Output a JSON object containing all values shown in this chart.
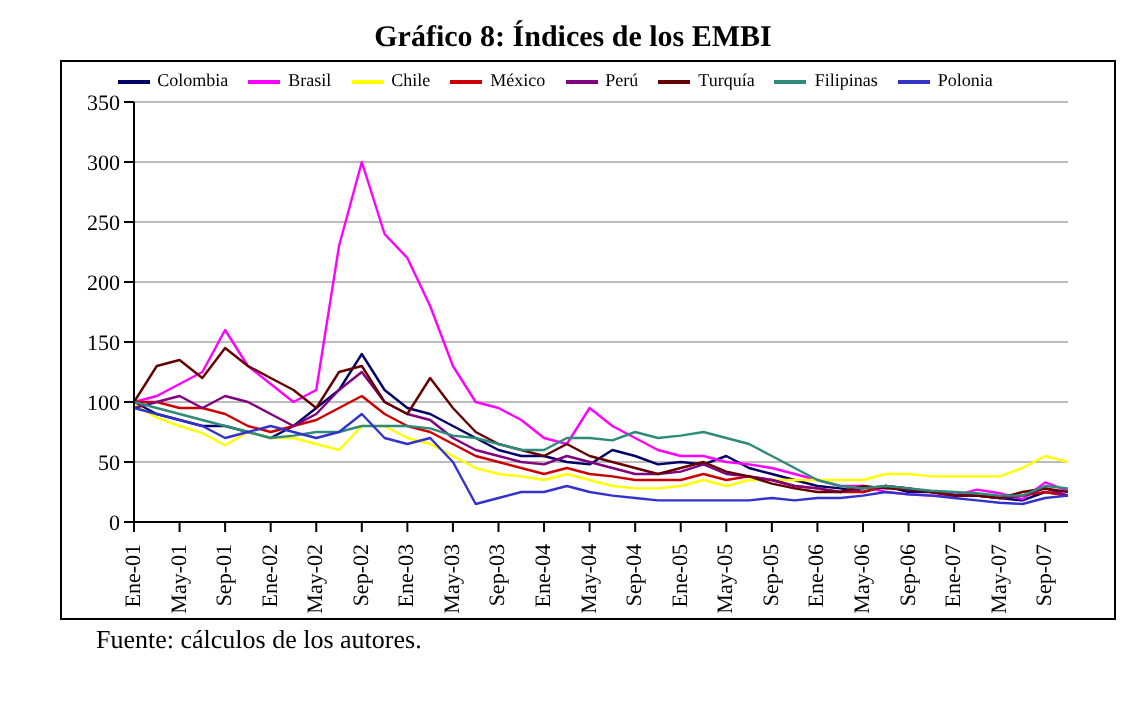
{
  "chart_data": {
    "type": "line",
    "title": "Gráfico 8: Índices de los EMBI",
    "annotations": [
      "Fuente: cálculos de los autores."
    ],
    "x": [
      "2001-01",
      "2001-03",
      "2001-05",
      "2001-07",
      "2001-09",
      "2001-11",
      "2002-01",
      "2002-03",
      "2002-05",
      "2002-07",
      "2002-09",
      "2002-11",
      "2003-01",
      "2003-03",
      "2003-05",
      "2003-07",
      "2003-09",
      "2003-11",
      "2004-01",
      "2004-03",
      "2004-05",
      "2004-07",
      "2004-09",
      "2004-11",
      "2005-01",
      "2005-03",
      "2005-05",
      "2005-07",
      "2005-09",
      "2005-11",
      "2006-01",
      "2006-03",
      "2006-05",
      "2006-07",
      "2006-09",
      "2006-11",
      "2007-01",
      "2007-03",
      "2007-05",
      "2007-07",
      "2007-09",
      "2007-11"
    ],
    "series": [
      {
        "name": "Colombia",
        "color": "#000066",
        "values": [
          100,
          90,
          85,
          80,
          80,
          75,
          70,
          80,
          95,
          110,
          140,
          110,
          95,
          90,
          80,
          70,
          60,
          55,
          55,
          50,
          48,
          60,
          55,
          48,
          50,
          48,
          55,
          45,
          40,
          35,
          30,
          28,
          25,
          30,
          25,
          25,
          22,
          22,
          20,
          18,
          25,
          22
        ]
      },
      {
        "name": "Brasil",
        "color": "#ff00ff",
        "values": [
          100,
          105,
          115,
          125,
          160,
          130,
          115,
          100,
          110,
          230,
          300,
          240,
          220,
          180,
          130,
          100,
          95,
          85,
          70,
          65,
          95,
          80,
          70,
          60,
          55,
          55,
          50,
          48,
          45,
          40,
          35,
          30,
          30,
          25,
          23,
          22,
          22,
          27,
          24,
          19,
          33,
          26
        ]
      },
      {
        "name": "Chile",
        "color": "#ffff00",
        "values": [
          98,
          87,
          80,
          74,
          64,
          75,
          70,
          70,
          65,
          60,
          80,
          80,
          70,
          65,
          55,
          45,
          40,
          38,
          35,
          40,
          35,
          30,
          28,
          28,
          30,
          35,
          30,
          35,
          35,
          35,
          35,
          35,
          35,
          40,
          40,
          38,
          38,
          38,
          38,
          45,
          55,
          50
        ]
      },
      {
        "name": "México",
        "color": "#cc0000",
        "values": [
          100,
          100,
          95,
          95,
          90,
          80,
          75,
          80,
          85,
          95,
          105,
          90,
          80,
          75,
          65,
          55,
          50,
          45,
          40,
          45,
          40,
          38,
          35,
          35,
          35,
          40,
          35,
          38,
          35,
          30,
          28,
          25,
          25,
          30,
          28,
          25,
          22,
          22,
          20,
          22,
          25,
          22
        ]
      },
      {
        "name": "Perú",
        "color": "#800080",
        "values": [
          95,
          100,
          105,
          95,
          105,
          100,
          90,
          80,
          90,
          110,
          125,
          100,
          90,
          85,
          70,
          60,
          55,
          50,
          48,
          55,
          50,
          45,
          40,
          40,
          42,
          48,
          40,
          38,
          35,
          30,
          28,
          25,
          28,
          30,
          28,
          25,
          23,
          22,
          20,
          22,
          28,
          22
        ]
      },
      {
        "name": "Turquía",
        "color": "#660000",
        "values": [
          100,
          130,
          135,
          120,
          145,
          130,
          120,
          110,
          95,
          125,
          130,
          100,
          90,
          120,
          95,
          75,
          65,
          60,
          55,
          65,
          55,
          50,
          45,
          40,
          45,
          50,
          42,
          38,
          32,
          28,
          25,
          25,
          30,
          28,
          27,
          25,
          22,
          22,
          20,
          25,
          28,
          25
        ]
      },
      {
        "name": "Filipinas",
        "color": "#2e8b7a",
        "values": [
          100,
          95,
          90,
          85,
          80,
          75,
          70,
          72,
          75,
          75,
          80,
          80,
          80,
          78,
          72,
          70,
          65,
          60,
          60,
          70,
          70,
          68,
          75,
          70,
          72,
          75,
          70,
          65,
          55,
          45,
          35,
          30,
          28,
          30,
          28,
          26,
          25,
          24,
          22,
          22,
          30,
          28
        ]
      },
      {
        "name": "Polonia",
        "color": "#3333cc",
        "values": [
          95,
          90,
          85,
          80,
          70,
          75,
          80,
          75,
          70,
          75,
          90,
          70,
          65,
          70,
          50,
          15,
          20,
          25,
          25,
          30,
          25,
          22,
          20,
          18,
          18,
          18,
          18,
          18,
          20,
          18,
          20,
          20,
          22,
          25,
          23,
          22,
          20,
          18,
          16,
          15,
          20,
          22
        ]
      }
    ],
    "xlim": [
      "2001-01",
      "2007-11"
    ],
    "xticks": [
      {
        "value": "2001-01",
        "label": "Ene-01"
      },
      {
        "value": "2001-05",
        "label": "May-01"
      },
      {
        "value": "2001-09",
        "label": "Sep-01"
      },
      {
        "value": "2002-01",
        "label": "Ene-02"
      },
      {
        "value": "2002-05",
        "label": "May-02"
      },
      {
        "value": "2002-09",
        "label": "Sep-02"
      },
      {
        "value": "2003-01",
        "label": "Ene-03"
      },
      {
        "value": "2003-05",
        "label": "May-03"
      },
      {
        "value": "2003-09",
        "label": "Sep-03"
      },
      {
        "value": "2004-01",
        "label": "Ene-04"
      },
      {
        "value": "2004-05",
        "label": "May-04"
      },
      {
        "value": "2004-09",
        "label": "Sep-04"
      },
      {
        "value": "2005-01",
        "label": "Ene-05"
      },
      {
        "value": "2005-05",
        "label": "May-05"
      },
      {
        "value": "2005-09",
        "label": "Sep-05"
      },
      {
        "value": "2006-01",
        "label": "Ene-06"
      },
      {
        "value": "2006-05",
        "label": "May-06"
      },
      {
        "value": "2006-09",
        "label": "Sep-06"
      },
      {
        "value": "2007-01",
        "label": "Ene-07"
      },
      {
        "value": "2007-05",
        "label": "May-07"
      },
      {
        "value": "2007-09",
        "label": "Sep-07"
      }
    ],
    "ylim": [
      0,
      350
    ],
    "yticks": [
      0,
      50,
      100,
      150,
      200,
      250,
      300,
      350
    ],
    "grid": "y",
    "legend": "top",
    "marker": "none",
    "line_style": "solid"
  }
}
